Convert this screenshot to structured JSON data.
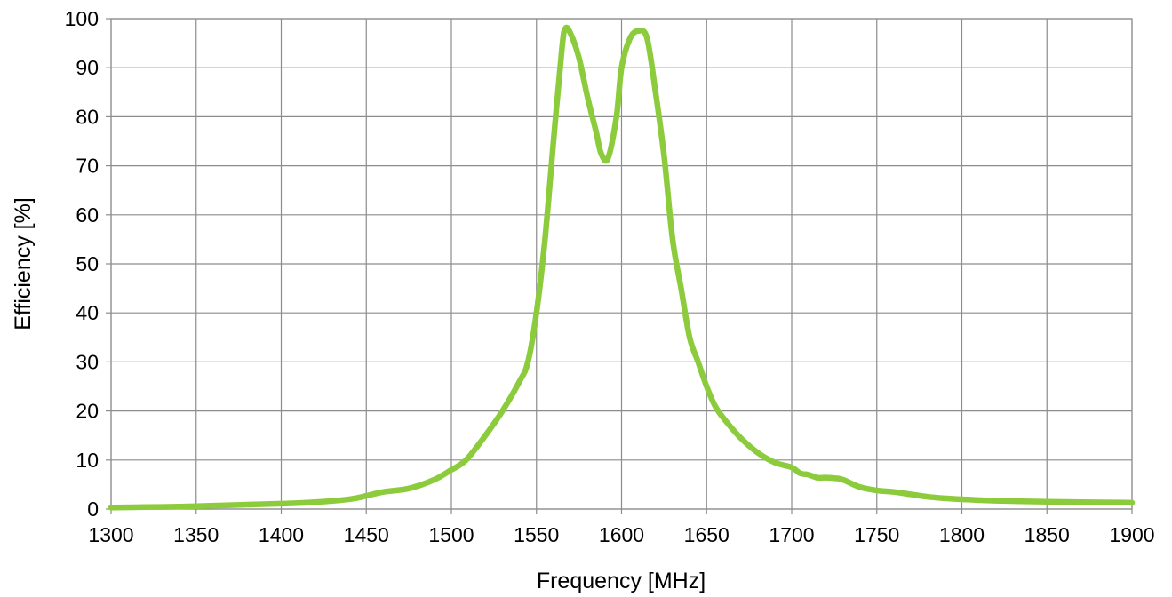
{
  "chart_data": {
    "type": "line",
    "title": "",
    "xlabel": "Frequency [MHz]",
    "ylabel": "Efficiency [%]",
    "xlim": [
      1300,
      1900
    ],
    "ylim": [
      0,
      100
    ],
    "x_ticks": [
      1300,
      1350,
      1400,
      1450,
      1500,
      1550,
      1600,
      1650,
      1700,
      1750,
      1800,
      1850,
      1900
    ],
    "y_ticks": [
      0,
      10,
      20,
      30,
      40,
      50,
      60,
      70,
      80,
      90,
      100
    ],
    "grid": true,
    "legend": "none",
    "series": [
      {
        "color": "#8ccc3c",
        "x": [
          1300,
          1320,
          1340,
          1360,
          1380,
          1400,
          1420,
          1440,
          1450,
          1460,
          1475,
          1490,
          1500,
          1505,
          1510,
          1520,
          1530,
          1540,
          1545,
          1550,
          1555,
          1560,
          1565,
          1567,
          1570,
          1575,
          1580,
          1585,
          1588,
          1592,
          1597,
          1600,
          1605,
          1610,
          1615,
          1620,
          1625,
          1630,
          1635,
          1640,
          1645,
          1650,
          1655,
          1660,
          1670,
          1680,
          1690,
          1700,
          1705,
          1710,
          1715,
          1720,
          1725,
          1730,
          1740,
          1750,
          1760,
          1770,
          1780,
          1790,
          1800,
          1820,
          1850,
          1870,
          1900
        ],
        "y": [
          0.3,
          0.4,
          0.5,
          0.7,
          0.9,
          1.1,
          1.4,
          2.0,
          2.7,
          3.5,
          4.2,
          6.0,
          8.0,
          9.0,
          10.5,
          15.0,
          20.0,
          26.0,
          30.0,
          40.0,
          55.0,
          75.0,
          94.0,
          98.0,
          97.0,
          92.0,
          84.0,
          77.0,
          72.5,
          71.5,
          80.0,
          90.0,
          96.0,
          97.5,
          96.0,
          85.0,
          72.0,
          55.0,
          45.0,
          35.0,
          30.0,
          25.0,
          21.0,
          18.5,
          14.5,
          11.5,
          9.5,
          8.5,
          7.3,
          7.0,
          6.4,
          6.4,
          6.3,
          6.0,
          4.5,
          3.8,
          3.5,
          3.0,
          2.5,
          2.2,
          2.0,
          1.7,
          1.5,
          1.4,
          1.3
        ]
      }
    ]
  }
}
